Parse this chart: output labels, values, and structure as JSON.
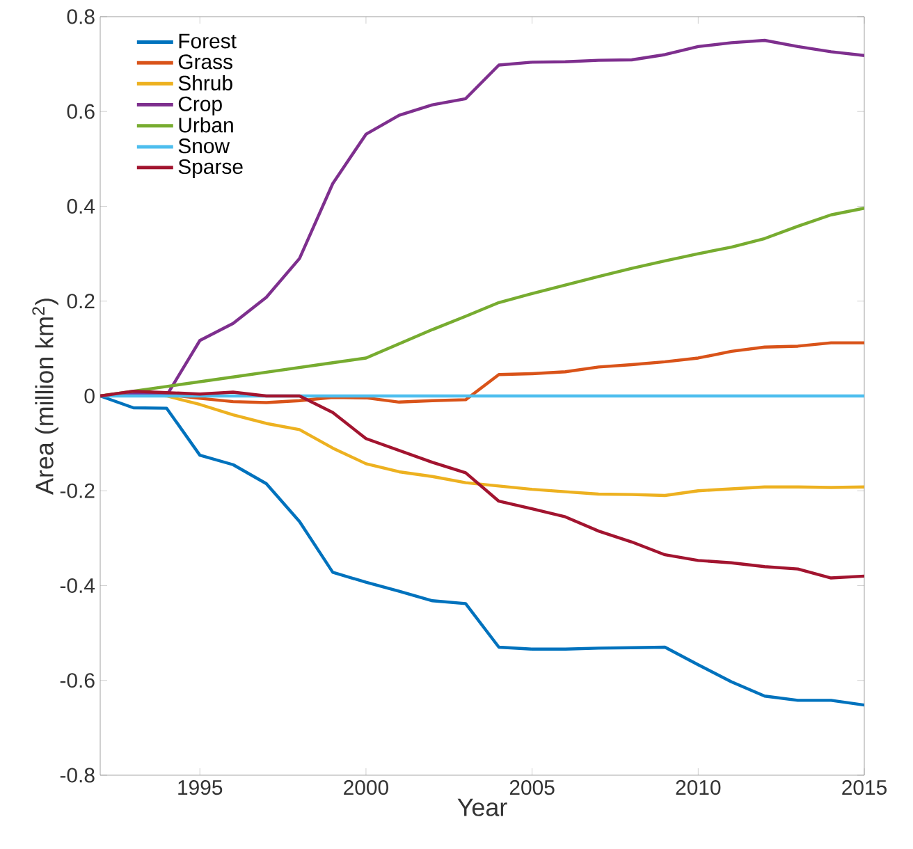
{
  "chart_data": {
    "type": "line",
    "xlabel": "Year",
    "ylabel": "Area (million km$^{2}$)",
    "x": [
      1992,
      1993,
      1994,
      1995,
      1996,
      1997,
      1998,
      1999,
      2000,
      2001,
      2002,
      2003,
      2004,
      2005,
      2006,
      2007,
      2008,
      2009,
      2010,
      2011,
      2012,
      2013,
      2014,
      2015
    ],
    "xlim": [
      1992,
      2015
    ],
    "xticks": [
      1995,
      2000,
      2005,
      2010,
      2015
    ],
    "ylim": [
      -0.8,
      0.8
    ],
    "yticks": [
      -0.8,
      -0.6,
      -0.4,
      -0.2,
      0,
      0.2,
      0.4,
      0.6,
      0.8
    ],
    "legend": "top left",
    "series": [
      {
        "name": "Forest",
        "color": "#0072bd",
        "values": [
          0,
          -0.025,
          -0.026,
          -0.125,
          -0.145,
          -0.185,
          -0.265,
          -0.372,
          -0.393,
          -0.412,
          -0.432,
          -0.438,
          -0.53,
          -0.534,
          -0.534,
          -0.532,
          -0.531,
          -0.53,
          -0.567,
          -0.603,
          -0.633,
          -0.642,
          -0.642,
          -0.652
        ]
      },
      {
        "name": "Grass",
        "color": "#d95319",
        "values": [
          0,
          0.008,
          0.003,
          -0.005,
          -0.012,
          -0.014,
          -0.01,
          -0.003,
          -0.004,
          -0.013,
          -0.01,
          -0.008,
          0.045,
          0.047,
          0.051,
          0.061,
          0.066,
          0.072,
          0.08,
          0.094,
          0.103,
          0.105,
          0.112,
          0.112
        ]
      },
      {
        "name": "Shrub",
        "color": "#edb120",
        "values": [
          0,
          0.005,
          0,
          -0.018,
          -0.04,
          -0.058,
          -0.071,
          -0.11,
          -0.143,
          -0.16,
          -0.17,
          -0.183,
          -0.19,
          -0.197,
          -0.202,
          -0.207,
          -0.208,
          -0.21,
          -0.2,
          -0.196,
          -0.192,
          -0.192,
          -0.193,
          -0.192
        ]
      },
      {
        "name": "Crop",
        "color": "#7e2f8e",
        "values": [
          0,
          0.005,
          0.001,
          0.117,
          0.153,
          0.208,
          0.29,
          0.448,
          0.552,
          0.592,
          0.614,
          0.627,
          0.698,
          0.704,
          0.705,
          0.708,
          0.709,
          0.72,
          0.737,
          0.745,
          0.75,
          0.737,
          0.726,
          0.718
        ]
      },
      {
        "name": "Urban",
        "color": "#77ac30",
        "values": [
          0,
          0.01,
          0.02,
          0.03,
          0.04,
          0.05,
          0.06,
          0.07,
          0.08,
          0.11,
          0.14,
          0.168,
          0.197,
          0.216,
          0.234,
          0.252,
          0.269,
          0.285,
          0.3,
          0.314,
          0.332,
          0.358,
          0.382,
          0.396
        ]
      },
      {
        "name": "Snow",
        "color": "#4dbeee",
        "values": [
          0,
          0,
          0,
          0,
          0,
          0,
          0,
          0,
          0,
          0,
          0,
          0,
          0,
          0,
          0,
          0,
          0,
          0,
          0,
          0,
          0,
          0,
          0,
          0
        ]
      },
      {
        "name": "Sparse",
        "color": "#a2142f",
        "values": [
          0,
          0.01,
          0.007,
          0.004,
          0.008,
          0,
          0,
          -0.035,
          -0.09,
          -0.115,
          -0.14,
          -0.162,
          -0.222,
          -0.238,
          -0.255,
          -0.285,
          -0.308,
          -0.335,
          -0.347,
          -0.352,
          -0.36,
          -0.365,
          -0.384,
          -0.38
        ]
      }
    ]
  }
}
